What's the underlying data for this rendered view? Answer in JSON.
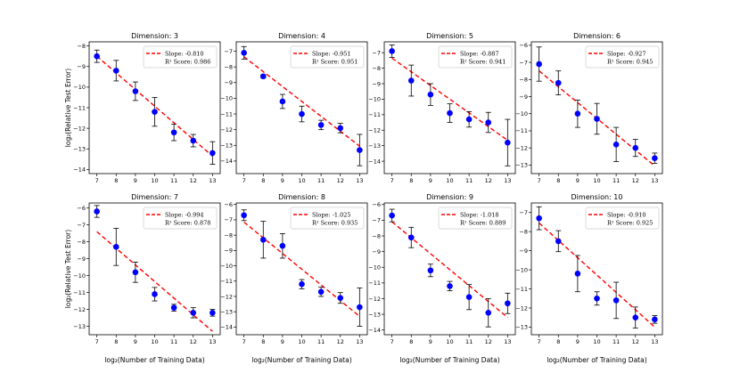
{
  "figure": {
    "ylabel_shared": "log₂(Relative Test Error)",
    "xlabel_shared": "log₂(Number of Training Data)"
  },
  "colors": {
    "points": "#0000ff",
    "fit": "#ff0000",
    "errorbar": "#000000"
  },
  "chart_data": [
    {
      "type": "scatter",
      "title": "Dimension: 3",
      "x": [
        7,
        8,
        9,
        10,
        11,
        12,
        13
      ],
      "y": [
        -8.5,
        -9.2,
        -10.2,
        -11.2,
        -12.2,
        -12.6,
        -13.2
      ],
      "yerr": [
        0.3,
        0.5,
        0.45,
        0.7,
        0.4,
        0.3,
        0.55
      ],
      "fit": {
        "slope_label": "Slope: -0.810",
        "r2_label": "R² Score: 0.986",
        "y_start": -8.5,
        "y_end": -13.35
      },
      "xlim": [
        6.6,
        13.4
      ],
      "ylim": [
        -14.2,
        -7.8
      ],
      "xticks": [
        7,
        8,
        9,
        10,
        11,
        12,
        13
      ],
      "yticks": [
        -8,
        -9,
        -10,
        -11,
        -12,
        -13,
        -14
      ]
    },
    {
      "type": "scatter",
      "title": "Dimension: 4",
      "x": [
        7,
        8,
        9,
        10,
        11,
        12,
        13
      ],
      "y": [
        -7.1,
        -8.6,
        -10.2,
        -11.0,
        -11.7,
        -11.9,
        -13.3
      ],
      "yerr": [
        0.4,
        0.1,
        0.45,
        0.5,
        0.3,
        0.3,
        1.0
      ],
      "fit": {
        "slope_label": "Slope: -0.951",
        "r2_label": "R² Score: 0.951",
        "y_start": -7.35,
        "y_end": -13.05
      },
      "xlim": [
        6.6,
        13.4
      ],
      "ylim": [
        -14.8,
        -6.4
      ],
      "xticks": [
        7,
        8,
        9,
        10,
        11,
        12,
        13
      ],
      "yticks": [
        -7,
        -8,
        -9,
        -10,
        -11,
        -12,
        -13,
        -14
      ]
    },
    {
      "type": "scatter",
      "title": "Dimension: 5",
      "x": [
        7,
        8,
        9,
        10,
        11,
        12,
        13
      ],
      "y": [
        -6.9,
        -8.8,
        -9.7,
        -10.9,
        -11.3,
        -11.5,
        -12.8
      ],
      "yerr": [
        0.4,
        1.0,
        0.7,
        0.6,
        0.5,
        0.65,
        1.5
      ],
      "fit": {
        "slope_label": "Slope: -0.887",
        "r2_label": "R² Score: 0.941",
        "y_start": -7.35,
        "y_end": -12.65
      },
      "xlim": [
        6.6,
        13.4
      ],
      "ylim": [
        -14.8,
        -6.3
      ],
      "xticks": [
        7,
        8,
        9,
        10,
        11,
        12,
        13
      ],
      "yticks": [
        -7,
        -8,
        -9,
        -10,
        -11,
        -12,
        -13,
        -14
      ]
    },
    {
      "type": "scatter",
      "title": "Dimension: 6",
      "x": [
        7,
        8,
        9,
        10,
        11,
        12,
        13
      ],
      "y": [
        -7.1,
        -8.2,
        -10.0,
        -10.3,
        -11.8,
        -12.0,
        -12.6
      ],
      "yerr": [
        1.0,
        0.7,
        0.8,
        0.9,
        1.0,
        0.5,
        0.3
      ],
      "fit": {
        "slope_label": "Slope: -0.927",
        "r2_label": "R² Score: 0.945",
        "y_start": -7.5,
        "y_end": -13.05
      },
      "xlim": [
        6.6,
        13.4
      ],
      "ylim": [
        -13.5,
        -5.8
      ],
      "xticks": [
        7,
        8,
        9,
        10,
        11,
        12,
        13
      ],
      "yticks": [
        -6,
        -7,
        -8,
        -9,
        -10,
        -11,
        -12,
        -13
      ]
    },
    {
      "type": "scatter",
      "title": "Dimension: 7",
      "x": [
        7,
        8,
        9,
        10,
        11,
        12,
        13
      ],
      "y": [
        -6.2,
        -8.3,
        -9.8,
        -11.1,
        -11.9,
        -12.2,
        -12.2
      ],
      "yerr": [
        0.35,
        1.1,
        0.6,
        0.4,
        0.2,
        0.3,
        0.2
      ],
      "fit": {
        "slope_label": "Slope: -0.994",
        "r2_label": "R² Score: 0.878",
        "y_start": -7.4,
        "y_end": -13.3
      },
      "xlim": [
        6.6,
        13.4
      ],
      "ylim": [
        -13.5,
        -5.7
      ],
      "xticks": [
        7,
        8,
        9,
        10,
        11,
        12,
        13
      ],
      "yticks": [
        -6,
        -7,
        -8,
        -9,
        -10,
        -11,
        -12,
        -13
      ]
    },
    {
      "type": "scatter",
      "title": "Dimension: 8",
      "x": [
        7,
        8,
        9,
        10,
        11,
        12,
        13
      ],
      "y": [
        -6.7,
        -8.3,
        -8.7,
        -11.2,
        -11.7,
        -12.1,
        -12.7
      ],
      "yerr": [
        0.35,
        1.2,
        0.8,
        0.3,
        0.3,
        0.35,
        1.25
      ],
      "fit": {
        "slope_label": "Slope: -1.025",
        "r2_label": "R² Score: 0.935",
        "y_start": -7.15,
        "y_end": -13.3
      },
      "xlim": [
        6.6,
        13.4
      ],
      "ylim": [
        -14.5,
        -5.9
      ],
      "xticks": [
        7,
        8,
        9,
        10,
        11,
        12,
        13
      ],
      "yticks": [
        -6,
        -7,
        -8,
        -9,
        -10,
        -11,
        -12,
        -13,
        -14
      ]
    },
    {
      "type": "scatter",
      "title": "Dimension: 9",
      "x": [
        7,
        8,
        9,
        10,
        11,
        12,
        13
      ],
      "y": [
        -6.7,
        -8.1,
        -10.2,
        -11.2,
        -11.9,
        -12.9,
        -12.3
      ],
      "yerr": [
        0.4,
        0.65,
        0.4,
        0.3,
        0.8,
        0.9,
        0.65
      ],
      "fit": {
        "slope_label": "Slope: -1.018",
        "r2_label": "R² Score: 0.889",
        "y_start": -7.1,
        "y_end": -13.2
      },
      "xlim": [
        6.6,
        13.4
      ],
      "ylim": [
        -14.3,
        -5.9
      ],
      "xticks": [
        7,
        8,
        9,
        10,
        11,
        12,
        13
      ],
      "yticks": [
        -6,
        -7,
        -8,
        -9,
        -10,
        -11,
        -12,
        -13,
        -14
      ]
    },
    {
      "type": "scatter",
      "title": "Dimension: 10",
      "x": [
        7,
        8,
        9,
        10,
        11,
        12,
        13
      ],
      "y": [
        -7.3,
        -8.5,
        -10.2,
        -11.5,
        -11.6,
        -12.5,
        -12.6
      ],
      "yerr": [
        0.6,
        0.55,
        0.95,
        0.35,
        0.95,
        0.55,
        0.2
      ],
      "fit": {
        "slope_label": "Slope: -0.910",
        "r2_label": "R² Score: 0.925",
        "y_start": -7.55,
        "y_end": -13.0
      },
      "xlim": [
        6.6,
        13.4
      ],
      "ylim": [
        -13.4,
        -6.5
      ],
      "xticks": [
        7,
        8,
        9,
        10,
        11,
        12,
        13
      ],
      "yticks": [
        -7,
        -8,
        -9,
        -10,
        -11,
        -12,
        -13
      ]
    }
  ]
}
